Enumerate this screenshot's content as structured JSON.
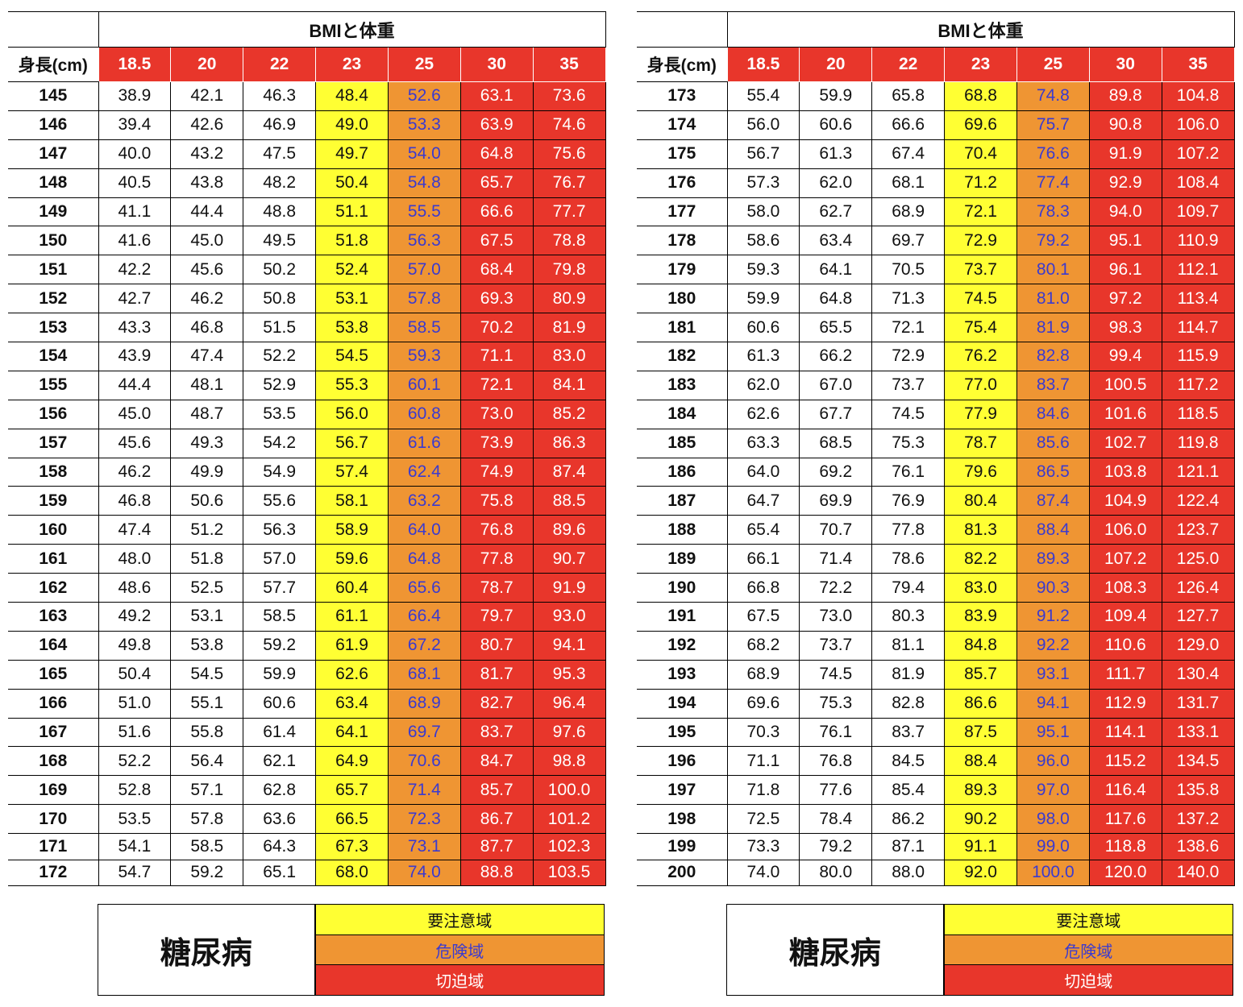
{
  "colors": {
    "header_red": "#e8362b",
    "caution_yellow": "#ffff33",
    "danger_orange": "#ef9533",
    "danger_text": "#3a3ad0",
    "critical_red": "#e8362b"
  },
  "tables": [
    {
      "title": "BMIと体重",
      "height_label": "身長(cm)",
      "bmi_headers": [
        "18.5",
        "20",
        "22",
        "23",
        "25",
        "30",
        "35"
      ],
      "rows": [
        {
          "h": "145",
          "v": [
            "38.9",
            "42.1",
            "46.3",
            "48.4",
            "52.6",
            "63.1",
            "73.6"
          ]
        },
        {
          "h": "146",
          "v": [
            "39.4",
            "42.6",
            "46.9",
            "49.0",
            "53.3",
            "63.9",
            "74.6"
          ]
        },
        {
          "h": "147",
          "v": [
            "40.0",
            "43.2",
            "47.5",
            "49.7",
            "54.0",
            "64.8",
            "75.6"
          ]
        },
        {
          "h": "148",
          "v": [
            "40.5",
            "43.8",
            "48.2",
            "50.4",
            "54.8",
            "65.7",
            "76.7"
          ]
        },
        {
          "h": "149",
          "v": [
            "41.1",
            "44.4",
            "48.8",
            "51.1",
            "55.5",
            "66.6",
            "77.7"
          ]
        },
        {
          "h": "150",
          "v": [
            "41.6",
            "45.0",
            "49.5",
            "51.8",
            "56.3",
            "67.5",
            "78.8"
          ]
        },
        {
          "h": "151",
          "v": [
            "42.2",
            "45.6",
            "50.2",
            "52.4",
            "57.0",
            "68.4",
            "79.8"
          ]
        },
        {
          "h": "152",
          "v": [
            "42.7",
            "46.2",
            "50.8",
            "53.1",
            "57.8",
            "69.3",
            "80.9"
          ]
        },
        {
          "h": "153",
          "v": [
            "43.3",
            "46.8",
            "51.5",
            "53.8",
            "58.5",
            "70.2",
            "81.9"
          ]
        },
        {
          "h": "154",
          "v": [
            "43.9",
            "47.4",
            "52.2",
            "54.5",
            "59.3",
            "71.1",
            "83.0"
          ]
        },
        {
          "h": "155",
          "v": [
            "44.4",
            "48.1",
            "52.9",
            "55.3",
            "60.1",
            "72.1",
            "84.1"
          ]
        },
        {
          "h": "156",
          "v": [
            "45.0",
            "48.7",
            "53.5",
            "56.0",
            "60.8",
            "73.0",
            "85.2"
          ]
        },
        {
          "h": "157",
          "v": [
            "45.6",
            "49.3",
            "54.2",
            "56.7",
            "61.6",
            "73.9",
            "86.3"
          ]
        },
        {
          "h": "158",
          "v": [
            "46.2",
            "49.9",
            "54.9",
            "57.4",
            "62.4",
            "74.9",
            "87.4"
          ]
        },
        {
          "h": "159",
          "v": [
            "46.8",
            "50.6",
            "55.6",
            "58.1",
            "63.2",
            "75.8",
            "88.5"
          ]
        },
        {
          "h": "160",
          "v": [
            "47.4",
            "51.2",
            "56.3",
            "58.9",
            "64.0",
            "76.8",
            "89.6"
          ]
        },
        {
          "h": "161",
          "v": [
            "48.0",
            "51.8",
            "57.0",
            "59.6",
            "64.8",
            "77.8",
            "90.7"
          ]
        },
        {
          "h": "162",
          "v": [
            "48.6",
            "52.5",
            "57.7",
            "60.4",
            "65.6",
            "78.7",
            "91.9"
          ]
        },
        {
          "h": "163",
          "v": [
            "49.2",
            "53.1",
            "58.5",
            "61.1",
            "66.4",
            "79.7",
            "93.0"
          ]
        },
        {
          "h": "164",
          "v": [
            "49.8",
            "53.8",
            "59.2",
            "61.9",
            "67.2",
            "80.7",
            "94.1"
          ]
        },
        {
          "h": "165",
          "v": [
            "50.4",
            "54.5",
            "59.9",
            "62.6",
            "68.1",
            "81.7",
            "95.3"
          ]
        },
        {
          "h": "166",
          "v": [
            "51.0",
            "55.1",
            "60.6",
            "63.4",
            "68.9",
            "82.7",
            "96.4"
          ]
        },
        {
          "h": "167",
          "v": [
            "51.6",
            "55.8",
            "61.4",
            "64.1",
            "69.7",
            "83.7",
            "97.6"
          ]
        },
        {
          "h": "168",
          "v": [
            "52.2",
            "56.4",
            "62.1",
            "64.9",
            "70.6",
            "84.7",
            "98.8"
          ]
        },
        {
          "h": "169",
          "v": [
            "52.8",
            "57.1",
            "62.8",
            "65.7",
            "71.4",
            "85.7",
            "100.0"
          ]
        },
        {
          "h": "170",
          "v": [
            "53.5",
            "57.8",
            "63.6",
            "66.5",
            "72.3",
            "86.7",
            "101.2"
          ]
        },
        {
          "h": "171",
          "v": [
            "54.1",
            "58.5",
            "64.3",
            "67.3",
            "73.1",
            "87.7",
            "102.3"
          ]
        },
        {
          "h": "172",
          "v": [
            "54.7",
            "59.2",
            "65.1",
            "68.0",
            "74.0",
            "88.8",
            "103.5"
          ]
        }
      ]
    },
    {
      "title": "BMIと体重",
      "height_label": "身長(cm)",
      "bmi_headers": [
        "18.5",
        "20",
        "22",
        "23",
        "25",
        "30",
        "35"
      ],
      "rows": [
        {
          "h": "173",
          "v": [
            "55.4",
            "59.9",
            "65.8",
            "68.8",
            "74.8",
            "89.8",
            "104.8"
          ]
        },
        {
          "h": "174",
          "v": [
            "56.0",
            "60.6",
            "66.6",
            "69.6",
            "75.7",
            "90.8",
            "106.0"
          ]
        },
        {
          "h": "175",
          "v": [
            "56.7",
            "61.3",
            "67.4",
            "70.4",
            "76.6",
            "91.9",
            "107.2"
          ]
        },
        {
          "h": "176",
          "v": [
            "57.3",
            "62.0",
            "68.1",
            "71.2",
            "77.4",
            "92.9",
            "108.4"
          ]
        },
        {
          "h": "177",
          "v": [
            "58.0",
            "62.7",
            "68.9",
            "72.1",
            "78.3",
            "94.0",
            "109.7"
          ]
        },
        {
          "h": "178",
          "v": [
            "58.6",
            "63.4",
            "69.7",
            "72.9",
            "79.2",
            "95.1",
            "110.9"
          ]
        },
        {
          "h": "179",
          "v": [
            "59.3",
            "64.1",
            "70.5",
            "73.7",
            "80.1",
            "96.1",
            "112.1"
          ]
        },
        {
          "h": "180",
          "v": [
            "59.9",
            "64.8",
            "71.3",
            "74.5",
            "81.0",
            "97.2",
            "113.4"
          ]
        },
        {
          "h": "181",
          "v": [
            "60.6",
            "65.5",
            "72.1",
            "75.4",
            "81.9",
            "98.3",
            "114.7"
          ]
        },
        {
          "h": "182",
          "v": [
            "61.3",
            "66.2",
            "72.9",
            "76.2",
            "82.8",
            "99.4",
            "115.9"
          ]
        },
        {
          "h": "183",
          "v": [
            "62.0",
            "67.0",
            "73.7",
            "77.0",
            "83.7",
            "100.5",
            "117.2"
          ]
        },
        {
          "h": "184",
          "v": [
            "62.6",
            "67.7",
            "74.5",
            "77.9",
            "84.6",
            "101.6",
            "118.5"
          ]
        },
        {
          "h": "185",
          "v": [
            "63.3",
            "68.5",
            "75.3",
            "78.7",
            "85.6",
            "102.7",
            "119.8"
          ]
        },
        {
          "h": "186",
          "v": [
            "64.0",
            "69.2",
            "76.1",
            "79.6",
            "86.5",
            "103.8",
            "121.1"
          ]
        },
        {
          "h": "187",
          "v": [
            "64.7",
            "69.9",
            "76.9",
            "80.4",
            "87.4",
            "104.9",
            "122.4"
          ]
        },
        {
          "h": "188",
          "v": [
            "65.4",
            "70.7",
            "77.8",
            "81.3",
            "88.4",
            "106.0",
            "123.7"
          ]
        },
        {
          "h": "189",
          "v": [
            "66.1",
            "71.4",
            "78.6",
            "82.2",
            "89.3",
            "107.2",
            "125.0"
          ]
        },
        {
          "h": "190",
          "v": [
            "66.8",
            "72.2",
            "79.4",
            "83.0",
            "90.3",
            "108.3",
            "126.4"
          ]
        },
        {
          "h": "191",
          "v": [
            "67.5",
            "73.0",
            "80.3",
            "83.9",
            "91.2",
            "109.4",
            "127.7"
          ]
        },
        {
          "h": "192",
          "v": [
            "68.2",
            "73.7",
            "81.1",
            "84.8",
            "92.2",
            "110.6",
            "129.0"
          ]
        },
        {
          "h": "193",
          "v": [
            "68.9",
            "74.5",
            "81.9",
            "85.7",
            "93.1",
            "111.7",
            "130.4"
          ]
        },
        {
          "h": "194",
          "v": [
            "69.6",
            "75.3",
            "82.8",
            "86.6",
            "94.1",
            "112.9",
            "131.7"
          ]
        },
        {
          "h": "195",
          "v": [
            "70.3",
            "76.1",
            "83.7",
            "87.5",
            "95.1",
            "114.1",
            "133.1"
          ]
        },
        {
          "h": "196",
          "v": [
            "71.1",
            "76.8",
            "84.5",
            "88.4",
            "96.0",
            "115.2",
            "134.5"
          ]
        },
        {
          "h": "197",
          "v": [
            "71.8",
            "77.6",
            "85.4",
            "89.3",
            "97.0",
            "116.4",
            "135.8"
          ]
        },
        {
          "h": "198",
          "v": [
            "72.5",
            "78.4",
            "86.2",
            "90.2",
            "98.0",
            "117.6",
            "137.2"
          ]
        },
        {
          "h": "199",
          "v": [
            "73.3",
            "79.2",
            "87.1",
            "91.1",
            "99.0",
            "118.8",
            "138.6"
          ]
        },
        {
          "h": "200",
          "v": [
            "74.0",
            "80.0",
            "88.0",
            "92.0",
            "100.0",
            "120.0",
            "140.0"
          ]
        }
      ]
    }
  ],
  "legends": [
    {
      "name": "糖尿病",
      "items": [
        "要注意域",
        "危険域",
        "切迫域"
      ]
    },
    {
      "name": "糖尿病",
      "items": [
        "要注意域",
        "危険域",
        "切迫域"
      ]
    }
  ]
}
